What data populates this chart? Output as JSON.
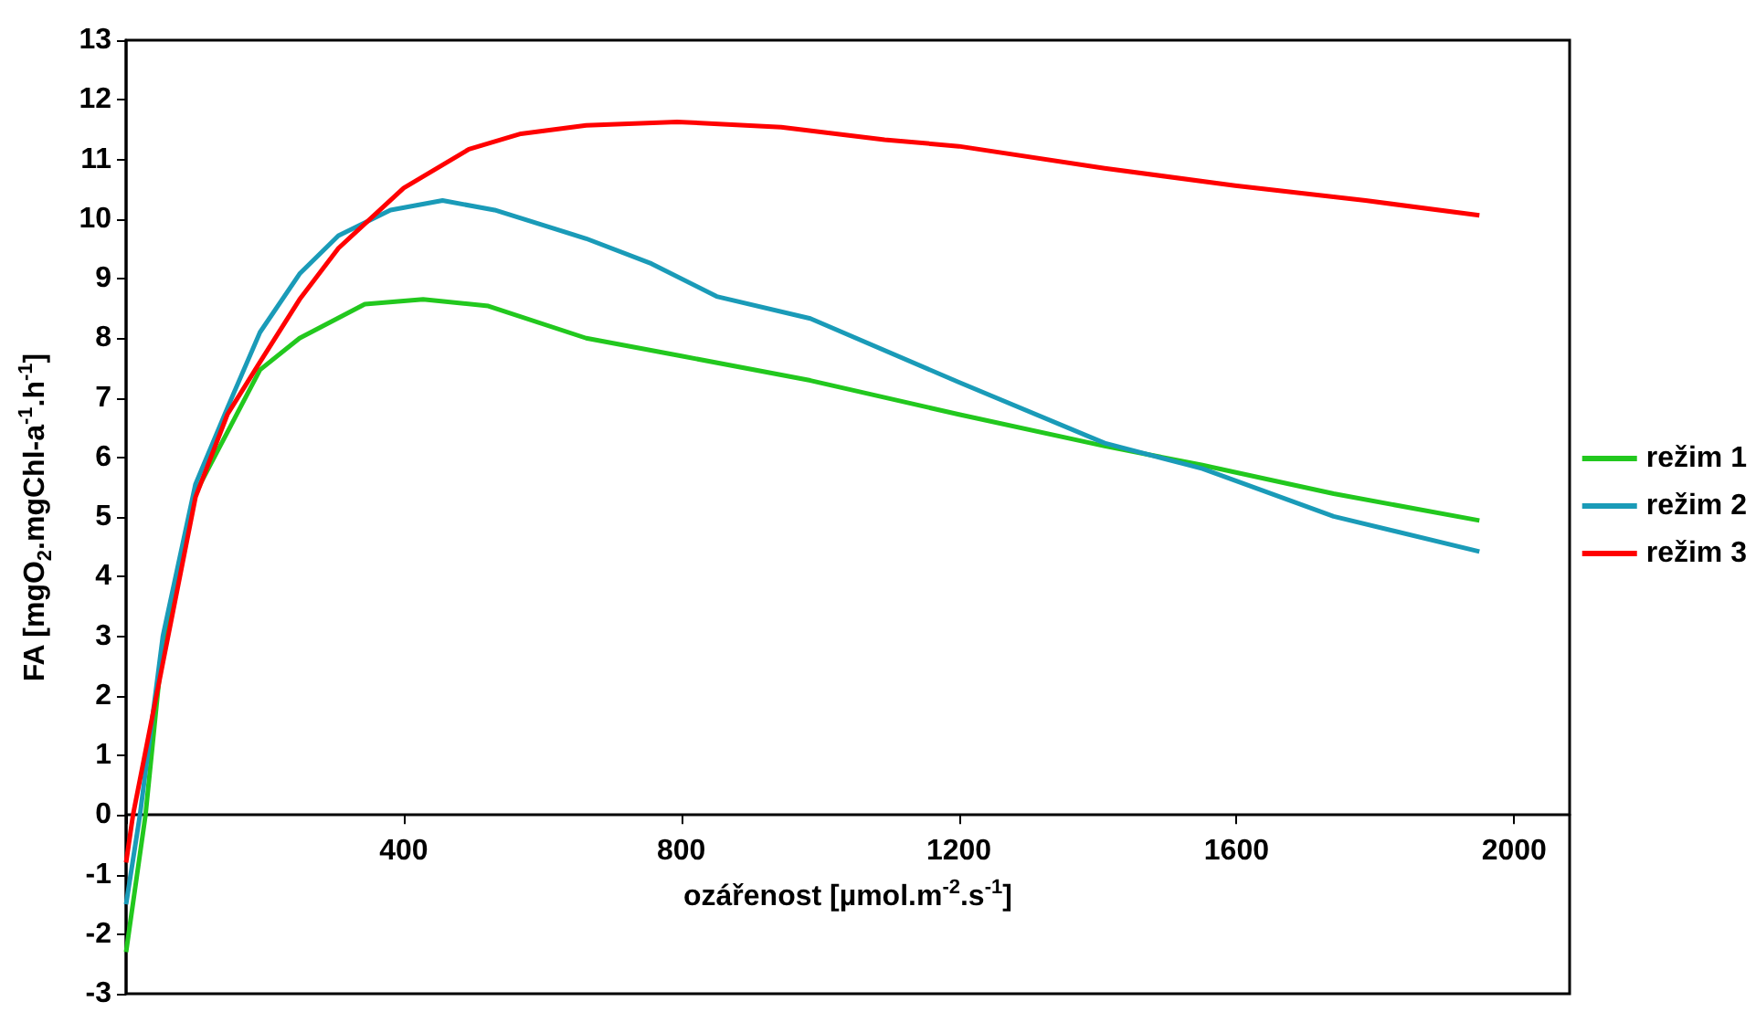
{
  "chart_data": {
    "type": "line",
    "xlabel": "ozářenost [µmol.m$^{-2}$.s$^{-1}$]",
    "ylabel": "FA [mgO$_{2}$.mgChl-a$^{-1}$.h$^{-1}$]",
    "xlim": [
      0,
      2080
    ],
    "xticks": [
      400,
      800,
      1200,
      1600,
      2000
    ],
    "ylim": [
      -3,
      13
    ],
    "yticks": [
      -3,
      -2,
      -1,
      0,
      1,
      2,
      3,
      4,
      5,
      6,
      7,
      8,
      9,
      10,
      11,
      12,
      13
    ],
    "grid": false,
    "legend": "right",
    "marker": "none",
    "line_style": "solid",
    "series": [
      {
        "name": "režim 1",
        "color": "#22c81e",
        "x": [
          0,
          28,
          53,
          100,
          193,
          250,
          344,
          428,
          522,
          663,
          800,
          986,
          1200,
          1410,
          1551,
          1740,
          1950
        ],
        "values": [
          -2.3,
          0,
          2.9,
          5.4,
          7.47,
          8.0,
          8.57,
          8.65,
          8.54,
          8.0,
          7.7,
          7.29,
          6.72,
          6.19,
          5.87,
          5.39,
          4.94
        ]
      },
      {
        "name": "režim 2",
        "color": "#1a9bb8",
        "x": [
          0,
          20,
          53,
          100,
          146,
          193,
          250,
          306,
          381,
          456,
          531,
          663,
          757,
          851,
          986,
          1200,
          1410,
          1551,
          1740,
          1950
        ],
        "values": [
          -1.5,
          0,
          3.0,
          5.55,
          6.83,
          8.1,
          9.08,
          9.72,
          10.15,
          10.31,
          10.15,
          9.67,
          9.25,
          8.7,
          8.33,
          7.26,
          6.24,
          5.81,
          5.01,
          4.42
        ]
      },
      {
        "name": "režim 3",
        "color": "#ff0000",
        "x": [
          0,
          10,
          53,
          100,
          146,
          193,
          250,
          306,
          400,
          494,
          569,
          663,
          794,
          944,
          1093,
          1200,
          1410,
          1598,
          1786,
          1950
        ],
        "values": [
          -0.8,
          0,
          2.55,
          5.33,
          6.72,
          7.6,
          8.65,
          9.51,
          10.52,
          11.17,
          11.43,
          11.57,
          11.63,
          11.54,
          11.33,
          11.22,
          10.85,
          10.56,
          10.31,
          10.06
        ]
      }
    ]
  }
}
